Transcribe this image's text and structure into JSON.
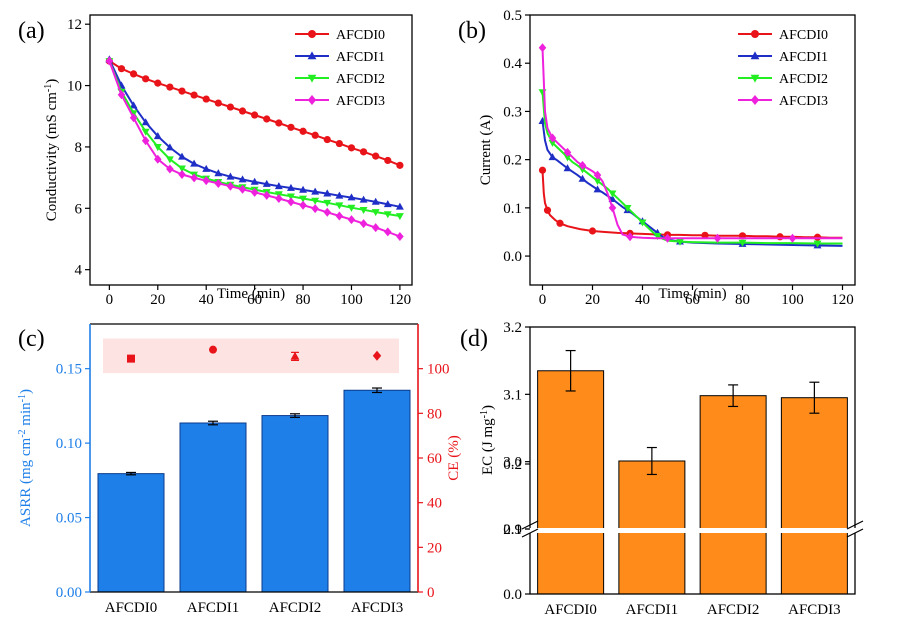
{
  "panels": {
    "a": {
      "label": "(a)",
      "chart_data": {
        "type": "line",
        "xlabel": "Time (min)",
        "ylabel": "Conductivity (mS cm",
        "ylabel_sup": "-1",
        "ylabel_close": ")",
        "xlim": [
          -8,
          125
        ],
        "ylim": [
          3.5,
          12.3
        ],
        "xticks": [
          0,
          20,
          40,
          60,
          80,
          100,
          120
        ],
        "yticks": [
          4,
          6,
          8,
          10,
          12
        ],
        "legend_position": "top-right",
        "series": [
          {
            "name": "AFCDI0",
            "color": "#e8141a",
            "marker": "circle",
            "x": [
              0,
              5,
              10,
              15,
              20,
              25,
              30,
              35,
              40,
              45,
              50,
              55,
              60,
              65,
              70,
              75,
              80,
              85,
              90,
              95,
              100,
              105,
              110,
              115,
              120
            ],
            "y": [
              10.8,
              10.55,
              10.38,
              10.22,
              10.08,
              9.95,
              9.82,
              9.69,
              9.56,
              9.43,
              9.3,
              9.17,
              9.04,
              8.91,
              8.78,
              8.64,
              8.51,
              8.38,
              8.24,
              8.11,
              7.97,
              7.84,
              7.7,
              7.56,
              7.4
            ]
          },
          {
            "name": "AFCDI1",
            "color": "#1f2fc6",
            "marker": "triangle-up",
            "x": [
              0,
              5,
              10,
              15,
              20,
              25,
              30,
              35,
              40,
              45,
              50,
              55,
              60,
              65,
              70,
              75,
              80,
              85,
              90,
              95,
              100,
              105,
              110,
              115,
              120
            ],
            "y": [
              10.85,
              10.0,
              9.35,
              8.8,
              8.35,
              7.98,
              7.68,
              7.45,
              7.28,
              7.14,
              7.03,
              6.94,
              6.86,
              6.79,
              6.72,
              6.66,
              6.6,
              6.54,
              6.48,
              6.41,
              6.35,
              6.28,
              6.21,
              6.13,
              6.05
            ]
          },
          {
            "name": "AFCDI2",
            "color": "#22ee22",
            "marker": "triangle-down",
            "x": [
              0,
              5,
              10,
              15,
              20,
              25,
              30,
              35,
              40,
              45,
              50,
              55,
              60,
              65,
              70,
              75,
              80,
              85,
              90,
              95,
              100,
              105,
              110,
              115,
              120
            ],
            "y": [
              10.8,
              9.8,
              9.1,
              8.5,
              8.0,
              7.6,
              7.3,
              7.1,
              6.97,
              6.86,
              6.77,
              6.69,
              6.61,
              6.53,
              6.46,
              6.39,
              6.32,
              6.25,
              6.18,
              6.1,
              6.02,
              5.95,
              5.88,
              5.81,
              5.75
            ]
          },
          {
            "name": "AFCDI3",
            "color": "#ee22dd",
            "marker": "diamond",
            "x": [
              0,
              5,
              10,
              15,
              20,
              25,
              30,
              35,
              40,
              45,
              50,
              55,
              60,
              65,
              70,
              75,
              80,
              85,
              90,
              95,
              100,
              105,
              110,
              115,
              120
            ],
            "y": [
              10.8,
              9.7,
              8.95,
              8.2,
              7.6,
              7.28,
              7.1,
              6.99,
              6.9,
              6.81,
              6.72,
              6.62,
              6.52,
              6.42,
              6.32,
              6.21,
              6.1,
              5.99,
              5.87,
              5.75,
              5.63,
              5.5,
              5.37,
              5.23,
              5.08
            ]
          }
        ]
      }
    },
    "b": {
      "label": "(b)",
      "chart_data": {
        "type": "line",
        "xlabel": "Time (min)",
        "ylabel": "Current (A)",
        "xlim": [
          -5,
          125
        ],
        "ylim": [
          -0.06,
          0.5
        ],
        "xticks": [
          0,
          20,
          40,
          60,
          80,
          100,
          120
        ],
        "yticks": [
          0.0,
          0.1,
          0.2,
          0.3,
          0.4,
          0.5
        ],
        "legend_position": "top-right",
        "series": [
          {
            "name": "AFCDI0",
            "color": "#e8141a",
            "marker": "circle",
            "x": [
              0,
              0.5,
              1,
              2,
              3,
              5,
              7,
              10,
              15,
              20,
              25,
              30,
              35,
              40,
              45,
              50,
              55,
              60,
              65,
              70,
              75,
              80,
              85,
              90,
              95,
              100,
              105,
              110,
              115,
              120
            ],
            "y": [
              0.178,
              0.13,
              0.11,
              0.095,
              0.085,
              0.075,
              0.068,
              0.062,
              0.056,
              0.052,
              0.05,
              0.048,
              0.047,
              0.046,
              0.045,
              0.044,
              0.044,
              0.043,
              0.043,
              0.042,
              0.042,
              0.042,
              0.041,
              0.041,
              0.04,
              0.04,
              0.039,
              0.039,
              0.038,
              0.038
            ]
          },
          {
            "name": "AFCDI1",
            "color": "#1f2fc6",
            "marker": "triangle-up",
            "x": [
              0,
              1,
              2,
              4,
              6,
              8,
              10,
              12,
              14,
              16,
              18,
              20,
              22,
              24,
              26,
              28,
              30,
              32,
              34,
              36,
              38,
              40,
              42,
              44,
              46,
              48,
              50,
              55,
              60,
              70,
              80,
              90,
              100,
              110,
              120
            ],
            "y": [
              0.28,
              0.24,
              0.22,
              0.205,
              0.198,
              0.19,
              0.182,
              0.175,
              0.168,
              0.16,
              0.152,
              0.145,
              0.138,
              0.132,
              0.125,
              0.118,
              0.11,
              0.102,
              0.095,
              0.088,
              0.08,
              0.072,
              0.064,
              0.056,
              0.048,
              0.04,
              0.034,
              0.03,
              0.028,
              0.026,
              0.025,
              0.024,
              0.023,
              0.022,
              0.021
            ]
          },
          {
            "name": "AFCDI2",
            "color": "#22ee22",
            "marker": "triangle-down",
            "x": [
              0,
              1,
              2,
              4,
              6,
              8,
              10,
              12,
              14,
              16,
              18,
              20,
              22,
              24,
              26,
              28,
              30,
              32,
              34,
              36,
              38,
              40,
              42,
              44,
              46,
              48,
              50,
              55,
              60,
              70,
              80,
              90,
              100,
              110,
              120
            ],
            "y": [
              0.34,
              0.275,
              0.255,
              0.235,
              0.225,
              0.215,
              0.205,
              0.195,
              0.188,
              0.18,
              0.172,
              0.164,
              0.156,
              0.148,
              0.14,
              0.13,
              0.12,
              0.11,
              0.1,
              0.09,
              0.08,
              0.07,
              0.06,
              0.05,
              0.042,
              0.036,
              0.032,
              0.03,
              0.029,
              0.028,
              0.028,
              0.027,
              0.027,
              0.026,
              0.026
            ]
          },
          {
            "name": "AFCDI3",
            "color": "#ee22dd",
            "marker": "diamond",
            "x": [
              0,
              1,
              2,
              4,
              6,
              8,
              10,
              12,
              14,
              16,
              18,
              20,
              22,
              24,
              26,
              28,
              30,
              32,
              35,
              40,
              45,
              50,
              55,
              60,
              70,
              80,
              90,
              100,
              110,
              120
            ],
            "y": [
              0.432,
              0.3,
              0.265,
              0.245,
              0.235,
              0.225,
              0.215,
              0.205,
              0.195,
              0.188,
              0.182,
              0.176,
              0.168,
              0.155,
              0.13,
              0.1,
              0.065,
              0.045,
              0.04,
              0.038,
              0.037,
              0.037,
              0.037,
              0.037,
              0.037,
              0.037,
              0.037,
              0.037,
              0.037,
              0.037
            ]
          }
        ]
      }
    },
    "c": {
      "label": "(c)",
      "chart_data": {
        "type": "bar",
        "categories": [
          "AFCDI0",
          "AFCDI1",
          "AFCDI2",
          "AFCDI3"
        ],
        "ylabel": "ASRR (mg cm",
        "ylabel_sup1": "-2",
        "ylabel_mid": " min",
        "ylabel_sup2": "-1",
        "ylabel_close": ")",
        "y2label": "CE (%)",
        "ylim": [
          0,
          0.18
        ],
        "y2lim": [
          0,
          120
        ],
        "yticks": [
          0.0,
          0.05,
          0.1,
          0.15
        ],
        "y2ticks": [
          0,
          20,
          40,
          60,
          80,
          100
        ],
        "bar_color": "#1e7fe8",
        "ce_color": "#e8141a",
        "series": [
          {
            "name": "ASRR",
            "values": [
              0.0795,
              0.1135,
              0.1185,
              0.1355
            ],
            "errors": [
              0.0008,
              0.0012,
              0.0012,
              0.0015
            ]
          },
          {
            "name": "CE",
            "values": [
              104.5,
              108.5,
              105.5,
              105.8
            ],
            "errors": [
              0.0,
              0.0,
              1.8,
              0.0
            ],
            "markers": [
              "square",
              "circle",
              "triangle-up",
              "diamond"
            ]
          }
        ]
      }
    },
    "d": {
      "label": "(d)",
      "chart_data": {
        "type": "bar",
        "categories": [
          "AFCDI0",
          "AFCDI1",
          "AFCDI2",
          "AFCDI3"
        ],
        "ylabel": "EC (J mg",
        "ylabel_sup": "-1",
        "ylabel_close": ")",
        "ylim_lower": [
          0,
          0.2
        ],
        "ylim_upper": [
          2.9,
          3.2
        ],
        "yticks_lower": [
          "0.0",
          "0.1",
          "0.2"
        ],
        "yticks_upper": [
          "2.9",
          "3.0",
          "3.1",
          "3.2"
        ],
        "bar_color": "#ff8c1a",
        "values": [
          3.135,
          3.001,
          3.098,
          3.095
        ],
        "errors": [
          0.03,
          0.02,
          0.016,
          0.023
        ]
      }
    }
  }
}
